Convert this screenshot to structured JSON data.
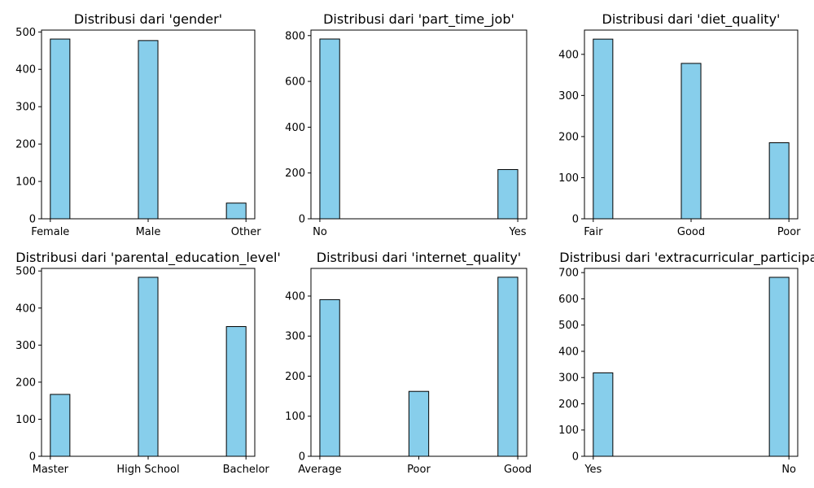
{
  "colors": {
    "bar_fill": "#87ceeb",
    "bar_edge": "#000000",
    "axes": "#000000"
  },
  "chart_data": [
    {
      "type": "bar",
      "title": "Distribusi dari 'gender'",
      "categories": [
        "Female",
        "Male",
        "Other"
      ],
      "values": [
        481,
        477,
        42
      ],
      "yticks": [
        0,
        100,
        200,
        300,
        400,
        500
      ],
      "ylim": [
        0,
        505
      ],
      "xlabel": "",
      "ylabel": "",
      "grid": false
    },
    {
      "type": "bar",
      "title": "Distribusi dari 'part_time_job'",
      "categories": [
        "No",
        "Yes"
      ],
      "values": [
        785,
        215
      ],
      "yticks": [
        0,
        200,
        400,
        600,
        800
      ],
      "ylim": [
        0,
        824
      ],
      "xlabel": "",
      "ylabel": "",
      "grid": false
    },
    {
      "type": "bar",
      "title": "Distribusi dari 'diet_quality'",
      "categories": [
        "Fair",
        "Good",
        "Poor"
      ],
      "values": [
        437,
        378,
        185
      ],
      "yticks": [
        0,
        100,
        200,
        300,
        400
      ],
      "ylim": [
        0,
        459
      ],
      "xlabel": "",
      "ylabel": "",
      "grid": false
    },
    {
      "type": "bar",
      "title": "Distribusi dari 'parental_education_level'",
      "categories": [
        "Master",
        "High School",
        "Bachelor"
      ],
      "values": [
        167,
        483,
        350
      ],
      "yticks": [
        0,
        100,
        200,
        300,
        400,
        500
      ],
      "ylim": [
        0,
        507
      ],
      "xlabel": "",
      "ylabel": "",
      "grid": false
    },
    {
      "type": "bar",
      "title": "Distribusi dari 'internet_quality'",
      "categories": [
        "Average",
        "Poor",
        "Good"
      ],
      "values": [
        391,
        162,
        447
      ],
      "yticks": [
        0,
        100,
        200,
        300,
        400
      ],
      "ylim": [
        0,
        469
      ],
      "xlabel": "",
      "ylabel": "",
      "grid": false
    },
    {
      "type": "bar",
      "title": "Distribusi dari 'extracurricular_participat",
      "categories": [
        "Yes",
        "No"
      ],
      "values": [
        318,
        682
      ],
      "yticks": [
        0,
        100,
        200,
        300,
        400,
        500,
        600,
        700
      ],
      "ylim": [
        0,
        716
      ],
      "xlabel": "",
      "ylabel": "",
      "grid": false
    }
  ]
}
